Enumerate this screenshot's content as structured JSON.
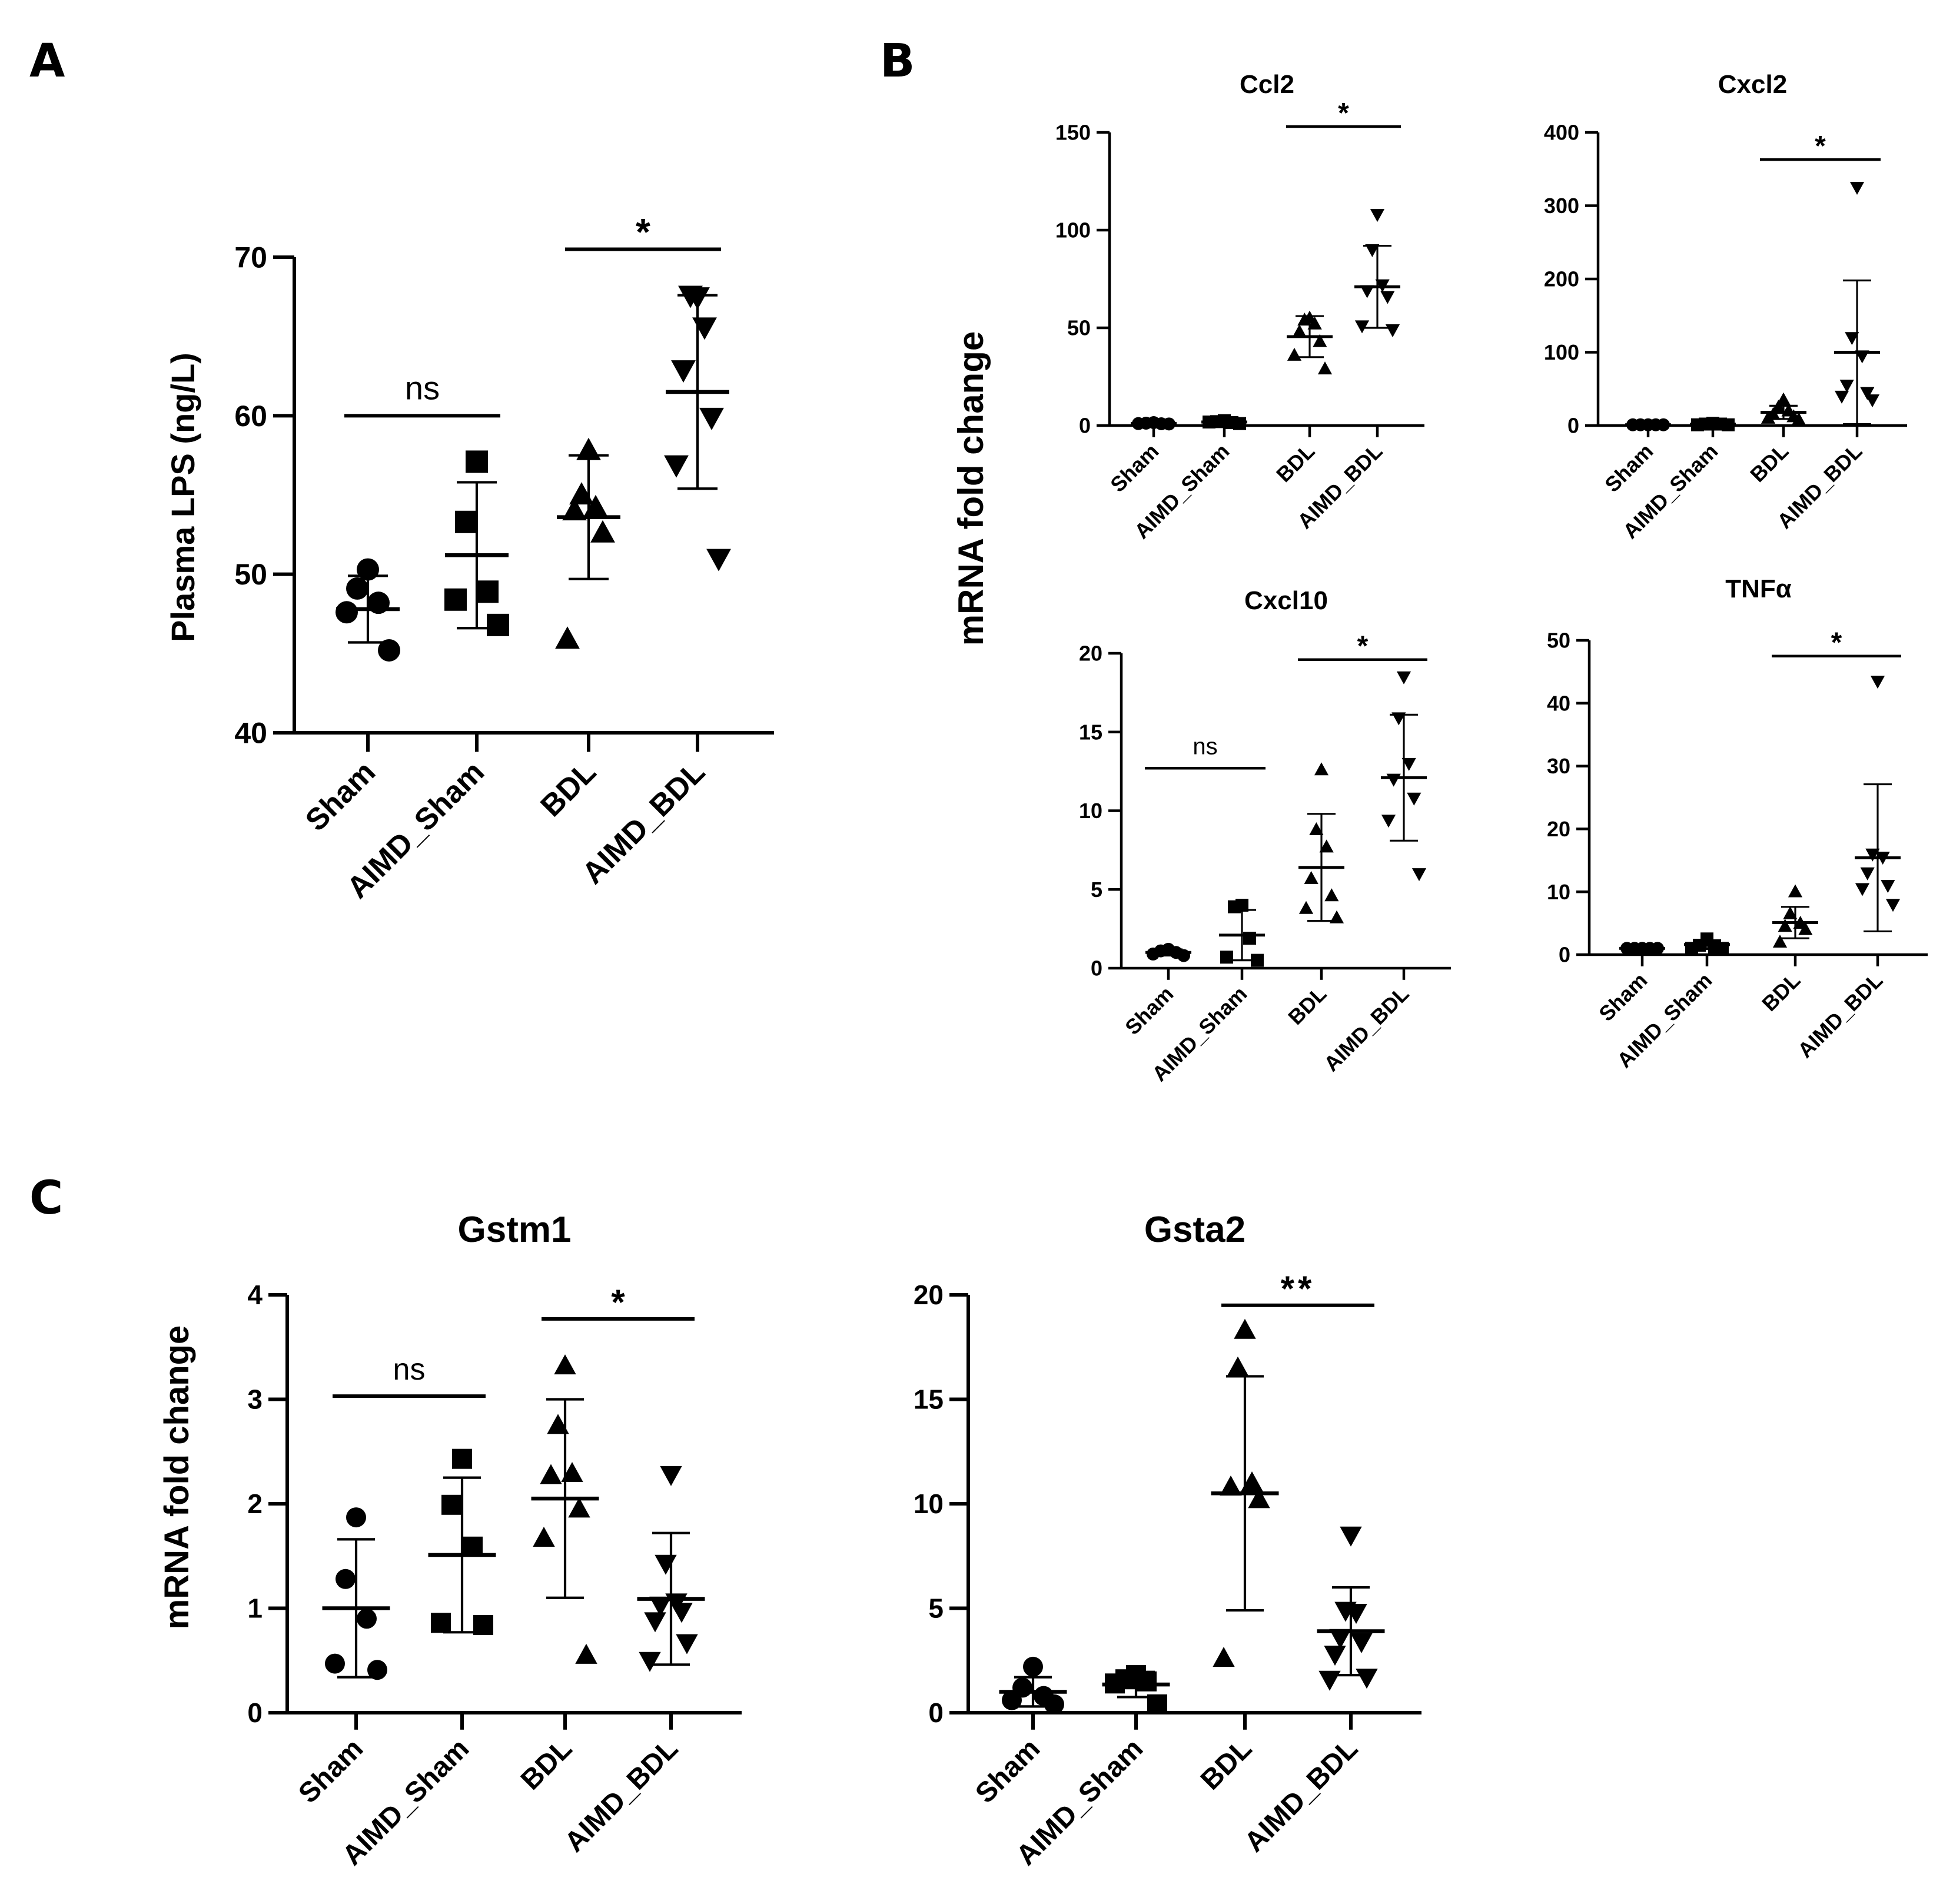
{
  "panel_labels": [
    "A",
    "B",
    "C"
  ],
  "y_labels": {
    "panel_a": "Plasma LPS (ng/L)",
    "panel_b": "mRNA fold change",
    "panel_c": "mRNA fold change"
  },
  "style": {
    "marker_color": "#000000",
    "line_color": "#000000"
  },
  "chart_data": [
    {
      "id": "A",
      "type": "scatter",
      "title": "",
      "xlabel": "",
      "ylabel": "Plasma LPS (ng/L)",
      "categories": [
        "Sham",
        "AIMD_Sham",
        "BDL",
        "AIMD_BDL"
      ],
      "markers": [
        "circle",
        "square",
        "triangle-up",
        "triangle-down"
      ],
      "ylim": [
        40,
        70
      ],
      "yticks": [
        40,
        50,
        60,
        70
      ],
      "points": [
        [
          50.3,
          49.1,
          48.2,
          47.6,
          45.2
        ],
        [
          57.1,
          53.3,
          48.9,
          48.4,
          46.8
        ],
        [
          57.8,
          55.0,
          54.2,
          54.0,
          52.6,
          45.9
        ],
        [
          67.5,
          67.6,
          65.6,
          62.9,
          59.9,
          56.9,
          51.0
        ]
      ],
      "mean": [
        47.8,
        51.2,
        53.6,
        61.5
      ],
      "sd": [
        2.1,
        4.6,
        3.9,
        6.1
      ],
      "significance": [
        {
          "from": 0,
          "to": 1,
          "label": "ns",
          "y": 60
        },
        {
          "from": 2,
          "to": 3,
          "label": "*",
          "y": 70.5
        }
      ]
    },
    {
      "id": "B-Ccl2",
      "type": "scatter",
      "title": "Ccl2",
      "ylabel": "mRNA fold change",
      "categories": [
        "Sham",
        "AIMD_Sham",
        "BDL",
        "AIMD_BDL"
      ],
      "markers": [
        "circle",
        "square",
        "triangle-up",
        "triangle-down"
      ],
      "ylim": [
        0,
        150
      ],
      "yticks": [
        0,
        50,
        100,
        150
      ],
      "points": [
        [
          1.5,
          1.2,
          0.9,
          1.0,
          0.8
        ],
        [
          2.5,
          2.0,
          1.5,
          1.8,
          1.0
        ],
        [
          55,
          54,
          52,
          48,
          43,
          36,
          29
        ],
        [
          108,
          90,
          72,
          69,
          66,
          51,
          49
        ]
      ],
      "mean": [
        1.1,
        1.8,
        45.5,
        71
      ],
      "sd": [
        0.3,
        0.5,
        10.5,
        21
      ],
      "significance": [
        {
          "from": 2,
          "to": 3,
          "label": "*",
          "y": 153
        }
      ]
    },
    {
      "id": "B-Cxcl2",
      "type": "scatter",
      "title": "Cxcl2",
      "ylabel": "mRNA fold change",
      "categories": [
        "Sham",
        "AIMD_Sham",
        "BDL",
        "AIMD_BDL"
      ],
      "markers": [
        "circle",
        "square",
        "triangle-up",
        "triangle-down"
      ],
      "ylim": [
        0,
        400
      ],
      "yticks": [
        0,
        100,
        200,
        300,
        400
      ],
      "points": [
        [
          1,
          1,
          1,
          1,
          1
        ],
        [
          3,
          2,
          2,
          1,
          1
        ],
        [
          35,
          25,
          20,
          15,
          12,
          10,
          8
        ],
        [
          325,
          120,
          95,
          55,
          45,
          40,
          35
        ]
      ],
      "mean": [
        1,
        1.8,
        18,
        100
      ],
      "sd": [
        0.2,
        0.7,
        9,
        98
      ],
      "significance": [
        {
          "from": 2,
          "to": 3,
          "label": "*",
          "y": 363
        }
      ]
    },
    {
      "id": "B-Cxcl10",
      "type": "scatter",
      "title": "Cxcl10",
      "ylabel": "mRNA fold change",
      "categories": [
        "Sham",
        "AIMD_Sham",
        "BDL",
        "AIMD_BDL"
      ],
      "markers": [
        "circle",
        "square",
        "triangle-up",
        "triangle-down"
      ],
      "ylim": [
        0,
        20
      ],
      "yticks": [
        0,
        5,
        10,
        15,
        20
      ],
      "points": [
        [
          1.2,
          1.1,
          1.0,
          0.9,
          0.8
        ],
        [
          4.0,
          3.9,
          1.9,
          0.7,
          0.5
        ],
        [
          12.6,
          8.8,
          7.7,
          5.7,
          4.6,
          3.8,
          3.2
        ],
        [
          18.5,
          15.9,
          13.0,
          12.0,
          10.8,
          9.4,
          6.0
        ]
      ],
      "mean": [
        1.0,
        2.1,
        6.4,
        12.1
      ],
      "sd": [
        0.2,
        1.6,
        3.4,
        4.0
      ],
      "significance": [
        {
          "from": 0,
          "to": 1,
          "label": "ns",
          "y": 12.7
        },
        {
          "from": 2,
          "to": 3,
          "label": "*",
          "y": 19.6
        }
      ]
    },
    {
      "id": "B-TNFa",
      "type": "scatter",
      "title": "TNFα",
      "ylabel": "mRNA fold change",
      "categories": [
        "Sham",
        "AIMD_Sham",
        "BDL",
        "AIMD_BDL"
      ],
      "markers": [
        "circle",
        "square",
        "triangle-up",
        "triangle-down"
      ],
      "ylim": [
        0,
        50
      ],
      "yticks": [
        0,
        10,
        20,
        30,
        40,
        50
      ],
      "points": [
        [
          1,
          1,
          1,
          1,
          1
        ],
        [
          2.5,
          1.5,
          1.2,
          1,
          1
        ],
        [
          10,
          6.5,
          5,
          4.5,
          4,
          2
        ],
        [
          43.5,
          16,
          15.5,
          13,
          11,
          10.5,
          8
        ]
      ],
      "mean": [
        1.0,
        1.6,
        5.1,
        15.4
      ],
      "sd": [
        0.2,
        0.7,
        2.5,
        11.7
      ],
      "significance": [
        {
          "from": 2,
          "to": 3,
          "label": "*",
          "y": 47.5
        }
      ]
    },
    {
      "id": "C-Gstm1",
      "type": "scatter",
      "title": "Gstm1",
      "ylabel": "mRNA fold change",
      "categories": [
        "Sham",
        "AIMD_Sham",
        "BDL",
        "AIMD_BDL"
      ],
      "markers": [
        "circle",
        "square",
        "triangle-up",
        "triangle-down"
      ],
      "ylim": [
        0,
        4
      ],
      "yticks": [
        0,
        1,
        2,
        3,
        4
      ],
      "points": [
        [
          1.87,
          1.28,
          0.9,
          0.47,
          0.41
        ],
        [
          2.43,
          1.99,
          1.59,
          0.86,
          0.84
        ],
        [
          3.32,
          2.75,
          2.29,
          2.27,
          1.95,
          1.67,
          0.55
        ],
        [
          2.28,
          1.43,
          1.06,
          1.03,
          0.97,
          0.88,
          0.67,
          0.5
        ]
      ],
      "mean": [
        1.0,
        1.51,
        2.05,
        1.09
      ],
      "sd": [
        0.66,
        0.74,
        0.95,
        0.63
      ],
      "significance": [
        {
          "from": 0,
          "to": 1,
          "label": "ns",
          "y": 3.03
        },
        {
          "from": 2,
          "to": 3,
          "label": "*",
          "y": 3.77
        }
      ]
    },
    {
      "id": "C-Gsta2",
      "type": "scatter",
      "title": "Gsta2",
      "ylabel": "mRNA fold change",
      "categories": [
        "Sham",
        "AIMD_Sham",
        "BDL",
        "AIMD_BDL"
      ],
      "markers": [
        "circle",
        "square",
        "triangle-up",
        "triangle-down"
      ],
      "ylim": [
        0,
        20
      ],
      "yticks": [
        0,
        5,
        10,
        15,
        20
      ],
      "points": [
        [
          2.2,
          1.2,
          0.8,
          0.6,
          0.4
        ],
        [
          1.8,
          1.6,
          1.5,
          1.4,
          0.4
        ],
        [
          18.3,
          16.5,
          11.0,
          10.8,
          10.2,
          2.6
        ],
        [
          8.5,
          4.9,
          4.8,
          3.6,
          3.4,
          2.8,
          1.7,
          1.6
        ]
      ],
      "mean": [
        1.0,
        1.35,
        10.5,
        3.9
      ],
      "sd": [
        0.7,
        0.6,
        5.6,
        2.1
      ],
      "significance": [
        {
          "from": 2,
          "to": 3,
          "label": "**",
          "y": 19.5
        }
      ]
    }
  ]
}
